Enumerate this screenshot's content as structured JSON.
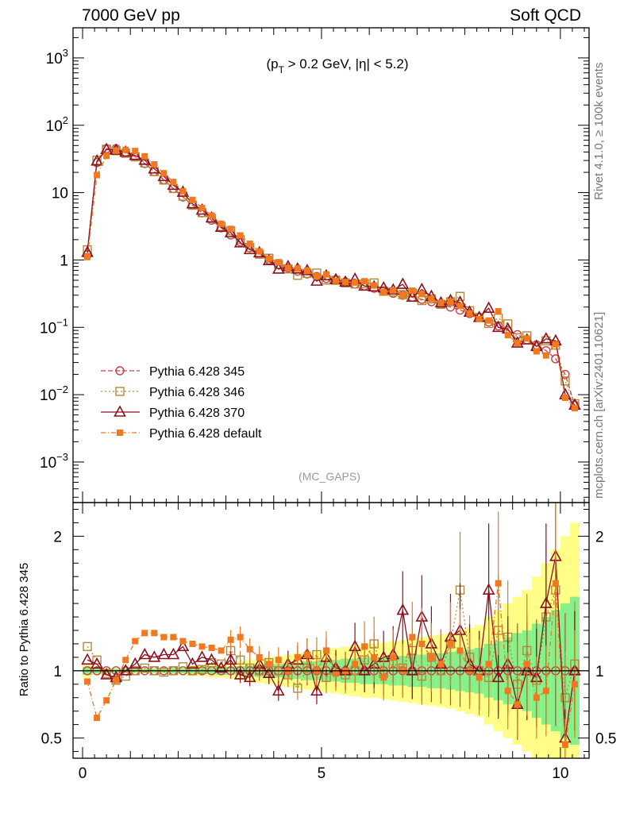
{
  "header": {
    "left": "7000 GeV pp",
    "right": "Soft QCD"
  },
  "side_labels": {
    "rivet": "Rivet 4.1.0, ≥ 100k events",
    "mcplots": "mcplots.cern.ch [arXiv:2401.10621]"
  },
  "colors": {
    "s345": "#c8404a",
    "s346": "#b08a3a",
    "s370": "#8b1020",
    "def": "#f07820",
    "band_yellow": "#ffff88",
    "band_green": "#88f088"
  },
  "chart_data": {
    "type": "line",
    "annotation_prefix": "(p",
    "annotation_sub": "T",
    "annotation_suffix": " > 0.2 GeV, |η| < 5.2)",
    "watermark": "(MC_GAPS)",
    "main": {
      "yscale": "log",
      "ylim": [
        0.00025,
        2800
      ],
      "xlim": [
        -0.2,
        10.6
      ],
      "yticks": [
        {
          "v": 1000,
          "base": "10",
          "exp": "3"
        },
        {
          "v": 100,
          "base": "10",
          "exp": "2"
        },
        {
          "v": 10,
          "base": "10",
          "exp": ""
        },
        {
          "v": 1,
          "base": "1",
          "exp": ""
        },
        {
          "v": 0.1,
          "base": "10",
          "exp": "−1"
        },
        {
          "v": 0.01,
          "base": "10",
          "exp": "−2"
        },
        {
          "v": 0.001,
          "base": "10",
          "exp": "−3"
        }
      ]
    },
    "ratio": {
      "ylabel": "Ratio to Pythia 6.428 345",
      "ylim": [
        0.35,
        2.25
      ],
      "yticks": [
        {
          "v": 2,
          "label": "2"
        },
        {
          "v": 1,
          "label": "1"
        },
        {
          "v": 0.5,
          "label": "0.5"
        }
      ],
      "xticks": [
        {
          "v": 0,
          "label": "0"
        },
        {
          "v": 5,
          "label": "5"
        },
        {
          "v": 10,
          "label": "10"
        }
      ]
    },
    "x": [
      0.1,
      0.3,
      0.5,
      0.7,
      0.9,
      1.1,
      1.3,
      1.5,
      1.7,
      1.9,
      2.1,
      2.3,
      2.5,
      2.7,
      2.9,
      3.1,
      3.3,
      3.5,
      3.7,
      3.9,
      4.1,
      4.3,
      4.5,
      4.7,
      4.9,
      5.1,
      5.3,
      5.5,
      5.7,
      5.9,
      6.1,
      6.3,
      6.5,
      6.7,
      6.9,
      7.1,
      7.3,
      7.5,
      7.7,
      7.9,
      8.1,
      8.3,
      8.5,
      8.7,
      8.9,
      9.1,
      9.3,
      9.5,
      9.7,
      9.9,
      10.1,
      10.3
    ],
    "reference": [
      1.2,
      28,
      45,
      45,
      40,
      34,
      27,
      20.5,
      15.5,
      11.5,
      8.6,
      6.5,
      5.0,
      3.9,
      3.0,
      2.35,
      1.85,
      1.5,
      1.22,
      1.0,
      0.86,
      0.76,
      0.68,
      0.62,
      0.57,
      0.53,
      0.5,
      0.47,
      0.44,
      0.41,
      0.38,
      0.35,
      0.32,
      0.3,
      0.28,
      0.26,
      0.24,
      0.22,
      0.2,
      0.18,
      0.16,
      0.14,
      0.12,
      0.105,
      0.09,
      0.078,
      0.065,
      0.055,
      0.045,
      0.034,
      0.02,
      0.007
    ],
    "legend": [
      "Pythia 6.428 345",
      "Pythia 6.428 346",
      "Pythia 6.428 370",
      "Pythia 6.428 default"
    ],
    "series": [
      {
        "name": "Pythia 6.428 345",
        "key": "s345",
        "marker": "circle",
        "dash": "6,3",
        "ratio": [
          1,
          1,
          1,
          1,
          1,
          1,
          1,
          1,
          1,
          1,
          1,
          1,
          1,
          1,
          1,
          1,
          1,
          1,
          1,
          1,
          1,
          1,
          1,
          1,
          1,
          1,
          1,
          1,
          1,
          1,
          1,
          1,
          1,
          1,
          1,
          1,
          1,
          1,
          1,
          1,
          1,
          1,
          1,
          1,
          1,
          1,
          1,
          1,
          1,
          1,
          1,
          1
        ]
      },
      {
        "name": "Pythia 6.428 346",
        "key": "s346",
        "marker": "square",
        "dash": "2,3",
        "ratio": [
          1.18,
          1.08,
          0.98,
          0.93,
          0.96,
          1.0,
          1.02,
          1.0,
          0.99,
          1.0,
          1.03,
          1.0,
          1.01,
          1.06,
          1.05,
          1.15,
          1.08,
          1.02,
          1.0,
          1.06,
          1.0,
          0.97,
          0.87,
          1.02,
          1.12,
          0.95,
          1.0,
          0.97,
          1.0,
          1.08,
          1.2,
          0.98,
          1.05,
          1.02,
          1.15,
          0.96,
          1.1,
          1.0,
          1.2,
          1.6,
          1.1,
          1.0,
          0.95,
          1.3,
          1.25,
          0.9,
          1.15,
          0.93,
          1.4,
          1.6,
          0.8,
          1.05
        ]
      },
      {
        "name": "Pythia 6.428 370",
        "key": "s370",
        "marker": "triangle",
        "dash": "",
        "ratio": [
          1.08,
          1.05,
          0.97,
          0.95,
          1.0,
          1.05,
          1.12,
          1.1,
          1.12,
          1.12,
          1.18,
          1.05,
          1.1,
          1.08,
          1.02,
          1.08,
          0.97,
          0.95,
          1.05,
          0.98,
          0.85,
          1.05,
          1.08,
          1.12,
          0.85,
          1.1,
          1.02,
          1.0,
          1.18,
          1.0,
          1.05,
          1.1,
          1.12,
          1.45,
          1.0,
          1.4,
          1.2,
          1.05,
          1.25,
          1.3,
          1.05,
          1.0,
          1.6,
          0.95,
          1.05,
          0.75,
          1.0,
          0.95,
          1.5,
          1.85,
          0.5,
          1.0
        ]
      },
      {
        "name": "Pythia 6.428 default",
        "key": "def",
        "marker": "filledsquare",
        "dash": "6,3,1,3",
        "ratio": [
          0.92,
          0.65,
          0.78,
          0.93,
          1.08,
          1.22,
          1.28,
          1.28,
          1.25,
          1.25,
          1.22,
          1.2,
          1.18,
          1.17,
          1.15,
          1.23,
          1.25,
          1.16,
          1.1,
          1.05,
          1.08,
          1.0,
          1.1,
          1.12,
          1.0,
          1.15,
          0.98,
          1.0,
          1.05,
          1.18,
          1.1,
          0.95,
          1.1,
          1.0,
          1.25,
          1.2,
          1.1,
          1.05,
          1.2,
          1.15,
          1.0,
          0.95,
          1.05,
          1.65,
          0.85,
          0.75,
          1.05,
          0.8,
          0.85,
          1.65,
          0.45,
          0.9
        ]
      }
    ],
    "band_yellow_halfwidth": [
      0.05,
      0.03,
      0.02,
      0.02,
      0.02,
      0.02,
      0.02,
      0.02,
      0.02,
      0.03,
      0.03,
      0.04,
      0.04,
      0.05,
      0.05,
      0.06,
      0.07,
      0.08,
      0.09,
      0.1,
      0.11,
      0.12,
      0.13,
      0.14,
      0.15,
      0.16,
      0.17,
      0.18,
      0.19,
      0.2,
      0.2,
      0.21,
      0.22,
      0.23,
      0.24,
      0.25,
      0.26,
      0.27,
      0.28,
      0.3,
      0.32,
      0.34,
      0.4,
      0.45,
      0.5,
      0.55,
      0.6,
      0.7,
      0.8,
      0.9,
      1.0,
      1.1
    ],
    "band_green_halfwidth": [
      0.03,
      0.02,
      0.015,
      0.015,
      0.015,
      0.015,
      0.015,
      0.015,
      0.015,
      0.02,
      0.02,
      0.02,
      0.025,
      0.025,
      0.03,
      0.03,
      0.035,
      0.04,
      0.045,
      0.05,
      0.05,
      0.06,
      0.06,
      0.07,
      0.07,
      0.08,
      0.08,
      0.09,
      0.09,
      0.1,
      0.1,
      0.1,
      0.11,
      0.11,
      0.12,
      0.12,
      0.13,
      0.13,
      0.14,
      0.15,
      0.16,
      0.17,
      0.2,
      0.22,
      0.25,
      0.28,
      0.3,
      0.35,
      0.4,
      0.45,
      0.5,
      0.55
    ]
  }
}
